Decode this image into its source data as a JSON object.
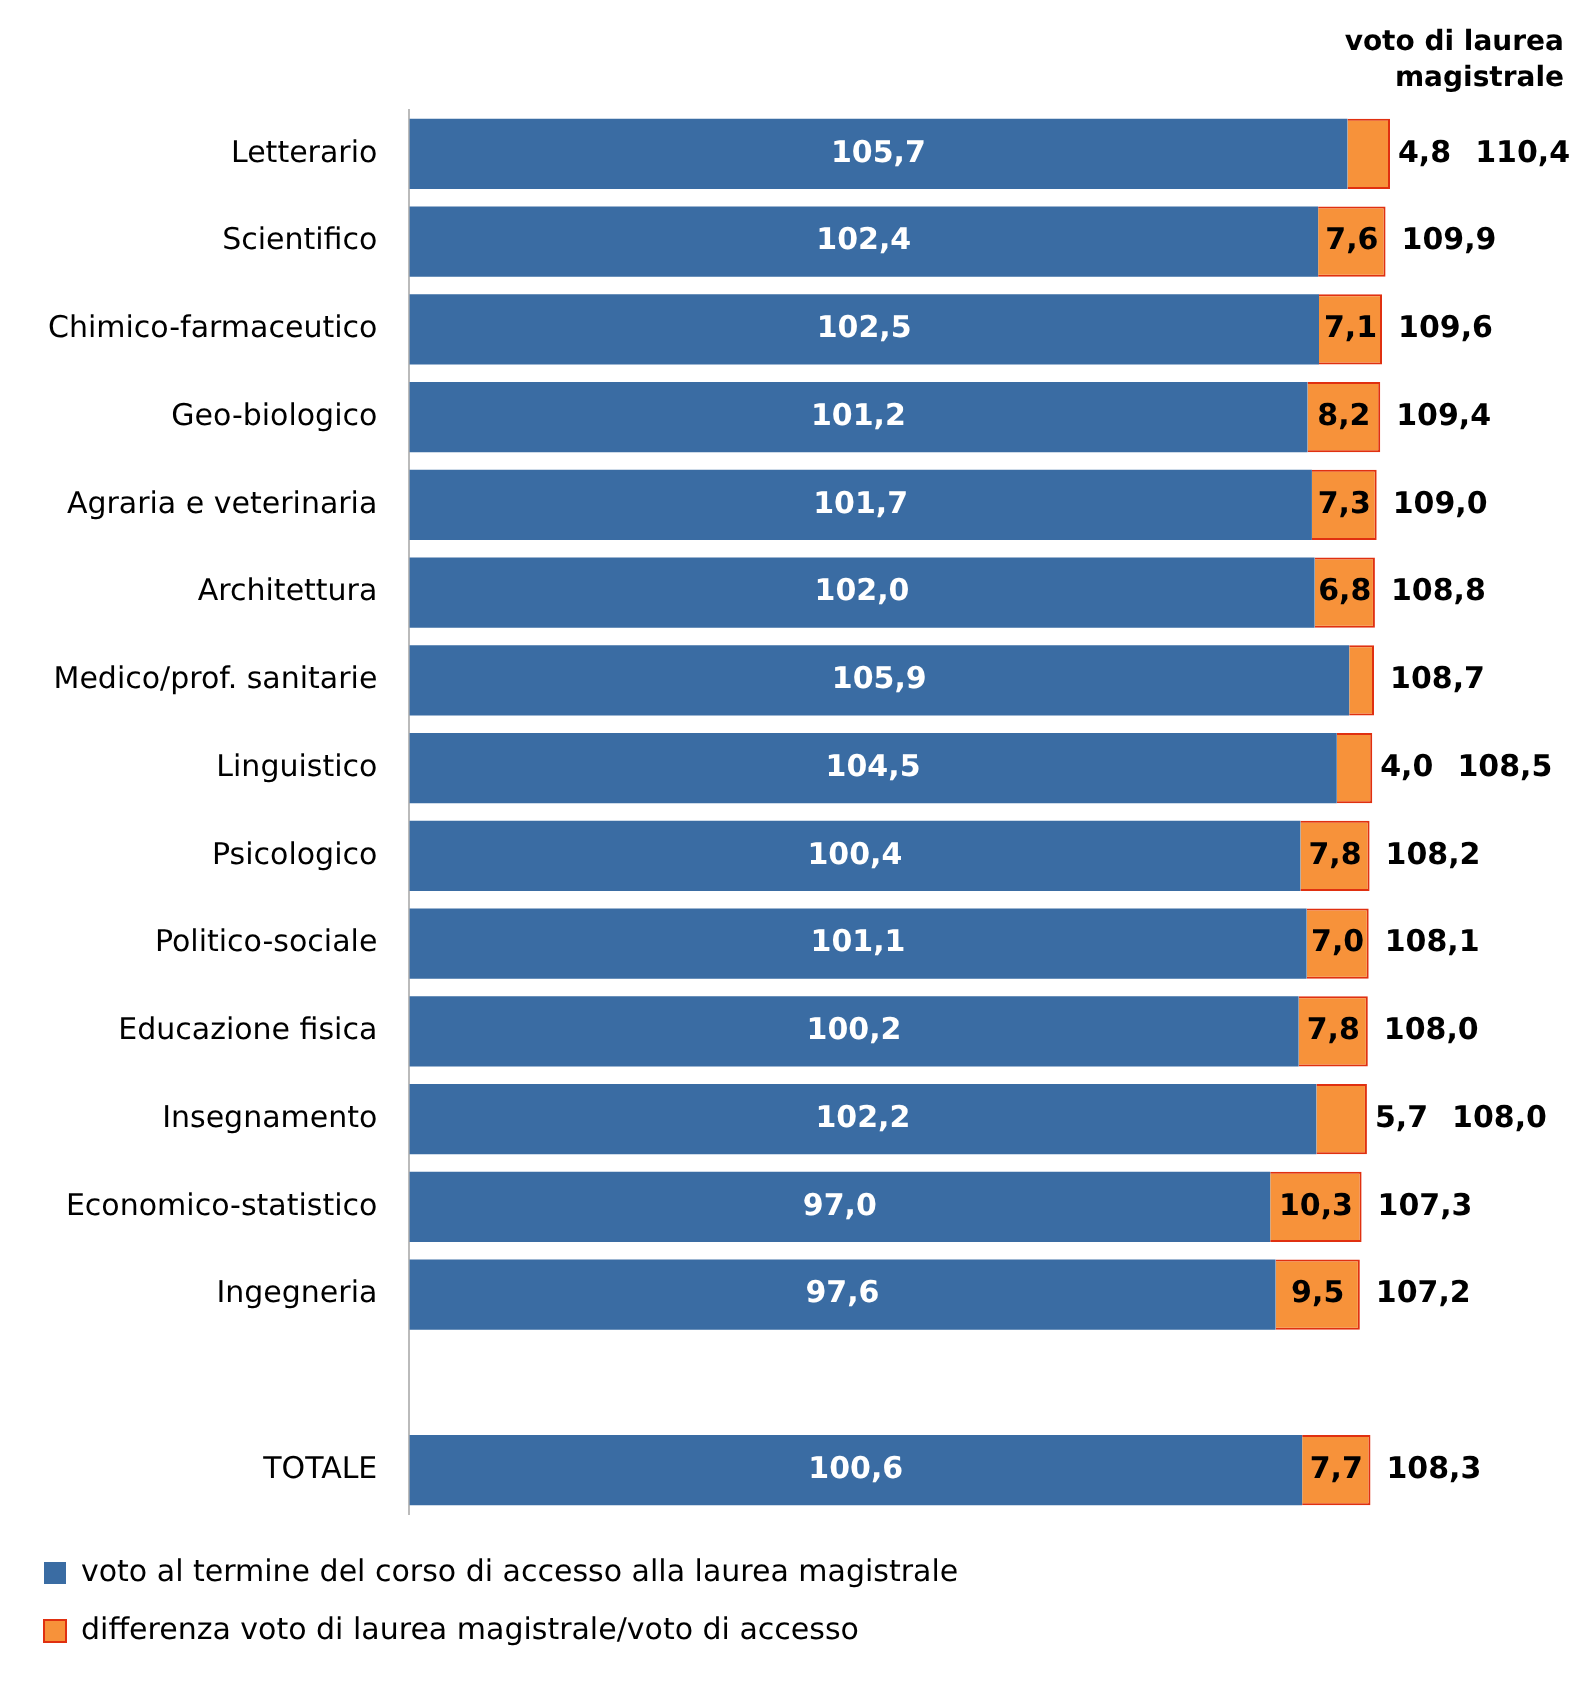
{
  "chart_data": {
    "type": "bar",
    "orientation": "horizontal",
    "stacked": true,
    "categories": [
      "Letterario",
      "Scientifico",
      "Chimico-farmaceutico",
      "Geo-biologico",
      "Agraria e veterinaria",
      "Architettura",
      "Medico/prof. sanitarie",
      "Linguistico",
      "Psicologico",
      "Politico-sociale",
      "Educazione fisica",
      "Insegnamento",
      "Economico-statistico",
      "Ingegneria",
      null,
      "TOTALE"
    ],
    "series": [
      {
        "name": "voto al termine del corso di accesso alla laurea magistrale",
        "color": "#3a6ca3",
        "values": [
          105.7,
          102.4,
          102.5,
          101.2,
          101.7,
          102.0,
          105.9,
          104.5,
          100.4,
          101.1,
          100.2,
          102.2,
          97.0,
          97.6,
          null,
          100.6
        ],
        "value_labels": [
          "105,7",
          "102,4",
          "102,5",
          "101,2",
          "101,7",
          "102,0",
          "105,9",
          "104,5",
          "100,4",
          "101,1",
          "100,2",
          "102,2",
          "97,0",
          "97,6",
          null,
          "100,6"
        ]
      },
      {
        "name": "differenza voto di laurea magistrale/voto di accesso",
        "color": "#f7923a",
        "values": [
          4.8,
          7.6,
          7.1,
          8.2,
          7.3,
          6.8,
          2.8,
          4.0,
          7.8,
          7.0,
          7.8,
          5.7,
          10.3,
          9.5,
          null,
          7.7
        ],
        "value_labels": [
          "4,8",
          "7,6",
          "7,1",
          "8,2",
          "7,3",
          "6,8",
          null,
          "4,0",
          "7,8",
          "7,0",
          "7,8",
          "5,7",
          "10,3",
          "9,5",
          null,
          "7,7"
        ]
      }
    ],
    "totals": [
      "110,4",
      "109,9",
      "109,6",
      "109,4",
      "109,0",
      "108,8",
      "108,7",
      "108,5",
      "108,2",
      "108,1",
      "108,0",
      "108,0",
      "107,3",
      "107,2",
      null,
      "108,3"
    ],
    "annotations": [
      "voto di laurea magistrale"
    ],
    "relative": false,
    "legend": "bottom left",
    "grid": false
  }
}
